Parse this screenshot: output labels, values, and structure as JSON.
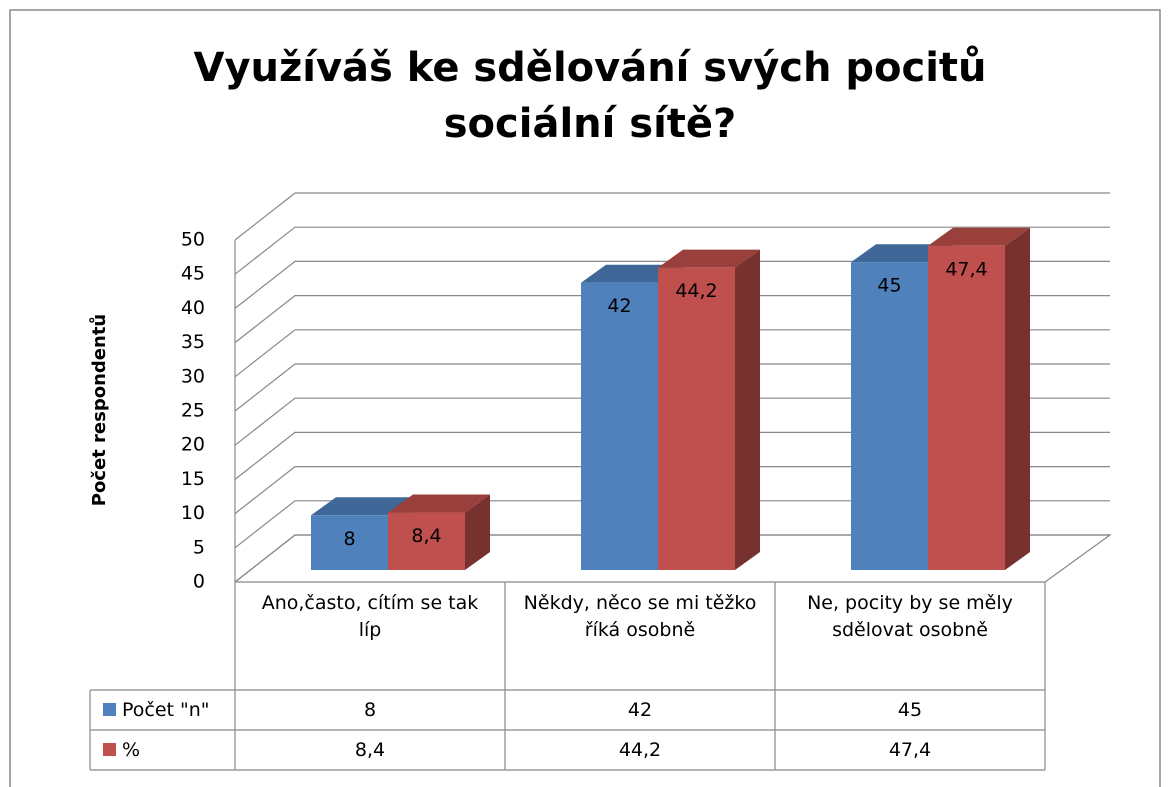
{
  "chart_data": {
    "type": "bar3d",
    "title": "Využíváš ke sdělování svých pocitů sociální sítě?",
    "y_label": "Počet respondentů",
    "categories": [
      "Ano,často, cítím se tak líp",
      "Někdy, něco se mi těžko říká osobně",
      "Ne, pocity by se měly sdělovat osobně"
    ],
    "series": [
      {
        "name": "Počet \"n\"",
        "color": "#4f81bd",
        "values": [
          8,
          42,
          45
        ]
      },
      {
        "name": "%",
        "color": "#c0504d",
        "values": [
          8.4,
          44.2,
          47.4
        ],
        "value_labels": [
          "8,4",
          "44,2",
          "47,4"
        ]
      }
    ],
    "ylim": [
      0,
      50
    ],
    "yticks": [
      0,
      5,
      10,
      15,
      20,
      25,
      30,
      35,
      40,
      45,
      50
    ],
    "grid": true,
    "data_table": true
  }
}
